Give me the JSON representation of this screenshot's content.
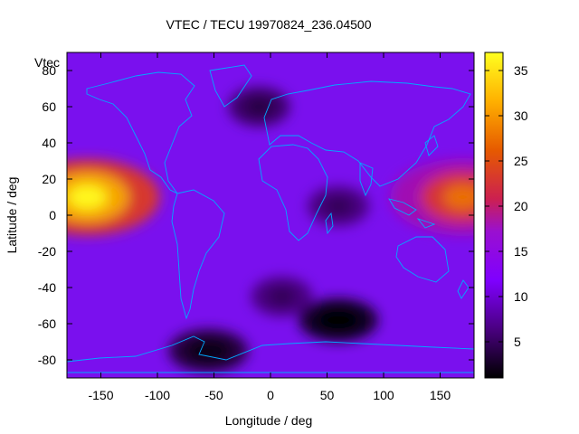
{
  "chart_data": {
    "type": "heatmap",
    "title": "VTEC / TECU 19970824_236.04500",
    "xlabel": "Longitude / deg",
    "ylabel": "Latitude / deg",
    "xlim": [
      -180,
      180
    ],
    "ylim": [
      -90,
      90
    ],
    "x_ticks": [
      -150,
      -100,
      -50,
      0,
      50,
      100,
      150
    ],
    "y_ticks": [
      -80,
      -60,
      -40,
      -20,
      0,
      20,
      40,
      60,
      80
    ],
    "legend": "Vtec",
    "colorbar": {
      "range": [
        1,
        37
      ],
      "ticks": [
        5,
        10,
        15,
        20,
        25,
        30,
        35
      ],
      "palette": [
        "#000000",
        "#4a0080",
        "#7f00ff",
        "#cc2050",
        "#e65a00",
        "#ffd000",
        "#ffff20"
      ]
    },
    "features": {
      "background_vtec": 9,
      "maxima": [
        {
          "lon": -162,
          "lat": 10,
          "value": 36
        },
        {
          "lon": 170,
          "lat": 10,
          "value": 26
        }
      ],
      "minima": [
        {
          "lon": 60,
          "lat": -58,
          "value": 1
        },
        {
          "lon": -55,
          "lat": -75,
          "value": 2
        },
        {
          "lon": 10,
          "lat": -45,
          "value": 5
        },
        {
          "lon": -10,
          "lat": 60,
          "value": 4
        },
        {
          "lon": 60,
          "lat": 5,
          "value": 5
        }
      ]
    },
    "coastlines_color": "#00aaff",
    "grid": false
  }
}
